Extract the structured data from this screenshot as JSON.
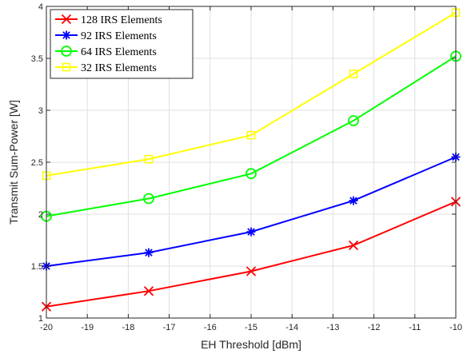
{
  "chart_data": {
    "type": "line",
    "title": "",
    "xlabel": "EH Threshold [dBm]",
    "ylabel": "Transmit Sum-Power [W]",
    "xlim": [
      -20,
      -10
    ],
    "ylim": [
      1,
      4
    ],
    "xticks": [
      -20,
      -19,
      -18,
      -17,
      -16,
      -15,
      -14,
      -13,
      -12,
      -11,
      -10
    ],
    "yticks": [
      1,
      1.5,
      2,
      2.5,
      3,
      3.5,
      4
    ],
    "grid": true,
    "legend_position": "top-left",
    "x": [
      -20,
      -17.5,
      -15,
      -12.5,
      -10
    ],
    "series": [
      {
        "name": "128 IRS Elements",
        "color": "#ff0000",
        "marker": "x",
        "values": [
          1.11,
          1.26,
          1.45,
          1.7,
          2.12
        ]
      },
      {
        "name": "92 IRS Elements",
        "color": "#0000ff",
        "marker": "asterisk",
        "values": [
          1.5,
          1.63,
          1.83,
          2.13,
          2.55
        ]
      },
      {
        "name": "64 IRS Elements",
        "color": "#00ff00",
        "marker": "circle",
        "values": [
          1.98,
          2.15,
          2.39,
          2.9,
          3.52
        ]
      },
      {
        "name": "32 IRS Elements",
        "color": "#ffff00",
        "marker": "square",
        "values": [
          2.37,
          2.53,
          2.76,
          3.35,
          3.94
        ]
      }
    ]
  }
}
